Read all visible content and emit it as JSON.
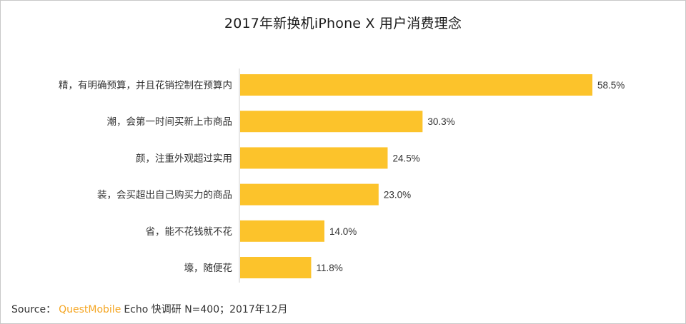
{
  "chart_data": {
    "type": "bar",
    "orientation": "horizontal",
    "title": "2017年新换机iPhone X 用户消费理念",
    "categories": [
      "精，有明确预算，并且花销控制在预算内",
      "潮，会第一时间买新上市商品",
      "颜，注重外观超过实用",
      "装，会买超出自己购买力的商品",
      "省，能不花钱就不花",
      "壕，随便花"
    ],
    "values": [
      58.5,
      30.3,
      24.5,
      23.0,
      14.0,
      11.8
    ],
    "value_labels": [
      "58.5%",
      "30.3%",
      "24.5%",
      "23.0%",
      "14.0%",
      "11.8%"
    ],
    "unit": "%",
    "xlim": [
      0,
      58.5
    ],
    "grid": false,
    "legend": "none",
    "bar_color": "#fcc32b",
    "axis_color": "#d0d0d0"
  },
  "footer": {
    "prefix": "Source：",
    "brand": "QuestMobile",
    "rest": "Echo 快调研  N=400；2017年12月"
  }
}
